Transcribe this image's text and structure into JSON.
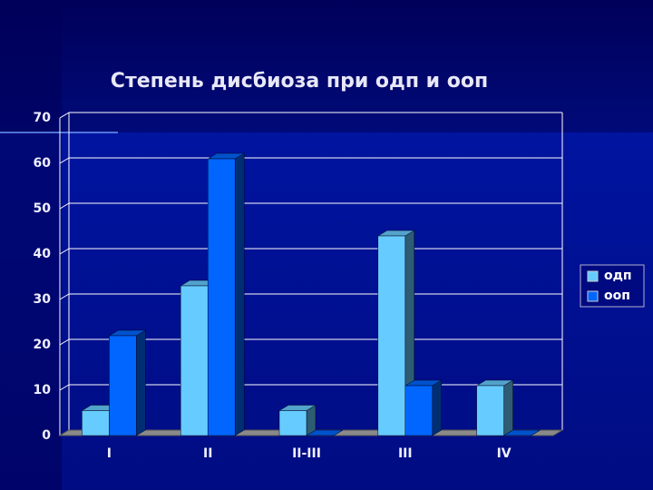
{
  "chart_data": {
    "type": "bar3d",
    "title": "Степень дисбиоза при одп и ооп",
    "categories": [
      "I",
      "II",
      "II-III",
      "III",
      "IV"
    ],
    "series": [
      {
        "name": "одп",
        "color": "#66ccff",
        "values": [
          5.5,
          33,
          5.5,
          44,
          11
        ]
      },
      {
        "name": "ооп",
        "color": "#0066ff",
        "values": [
          22,
          61,
          0,
          11,
          0
        ]
      }
    ],
    "ylim": [
      0,
      70
    ],
    "yticks": [
      0,
      10,
      20,
      30,
      40,
      50,
      60,
      70
    ],
    "grid": true,
    "legend": "right"
  }
}
